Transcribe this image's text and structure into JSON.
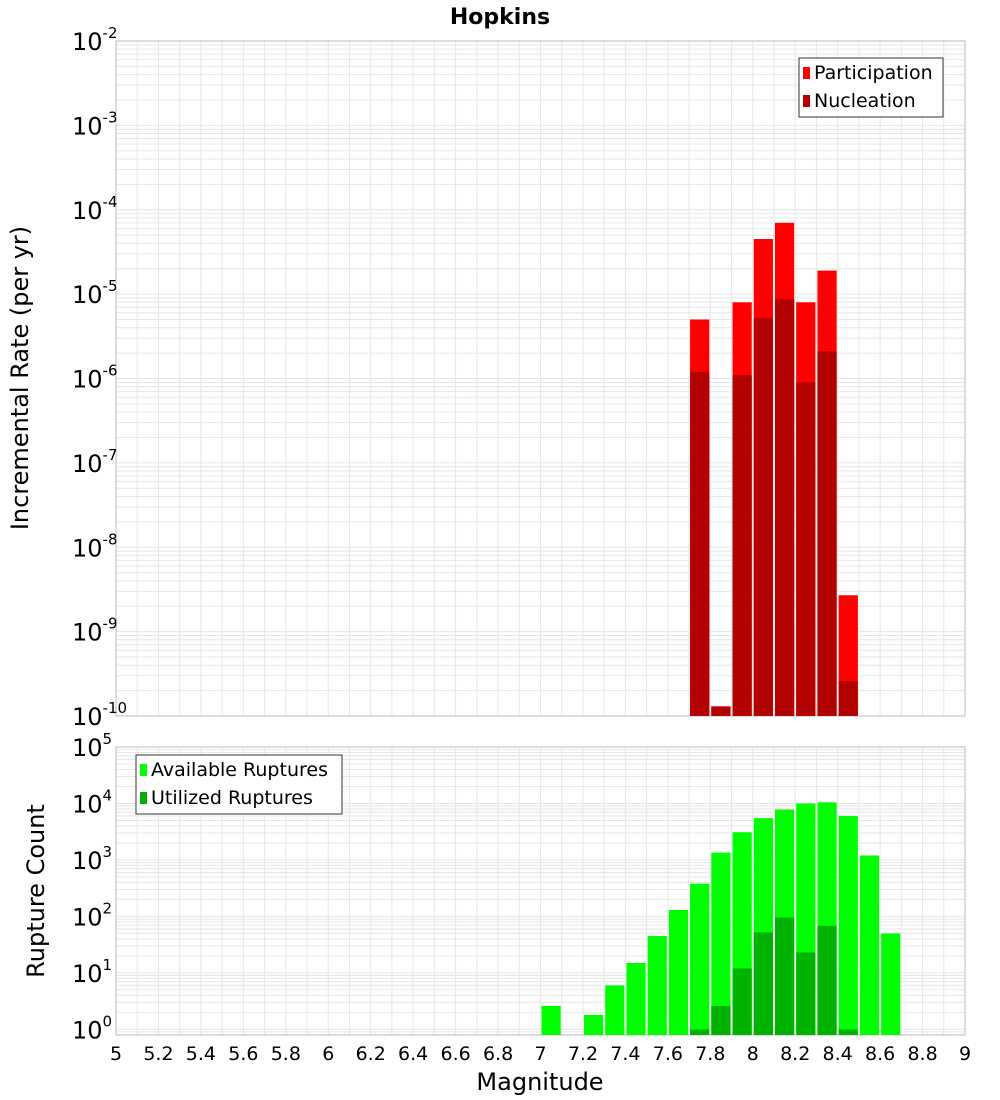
{
  "title": "Hopkins",
  "xlabel": "Magnitude",
  "xlim": [
    5,
    9
  ],
  "xticks": [
    "5",
    "5.2",
    "5.4",
    "5.6",
    "5.8",
    "6",
    "6.2",
    "6.4",
    "6.6",
    "6.8",
    "7",
    "7.2",
    "7.4",
    "7.6",
    "7.8",
    "8",
    "8.2",
    "8.4",
    "8.6",
    "8.8",
    "9"
  ],
  "colors": {
    "participation": "#ff0000",
    "nucleation": "#b30000",
    "available": "#00ff00",
    "utilized": "#00b300",
    "grid": "#e6e6e6",
    "frame": "#bbbbbb"
  },
  "chart_data": [
    {
      "type": "bar",
      "title": "Hopkins",
      "ylabel": "Incremental Rate (per yr)",
      "yscale": "log",
      "ylim_exp": [
        -10,
        -2
      ],
      "ytick_exps": [
        "-10",
        "-9",
        "-8",
        "-7",
        "-6",
        "-5",
        "-4",
        "-3",
        "-2"
      ],
      "legend": [
        "Participation",
        "Nucleation"
      ],
      "legend_position": "top-right",
      "x": [
        7.75,
        7.85,
        7.95,
        8.05,
        8.15,
        8.25,
        8.35,
        8.45
      ],
      "series": [
        {
          "name": "Participation",
          "values": [
            5e-06,
            1.3e-10,
            8e-06,
            4.5e-05,
            7e-05,
            8e-06,
            1.9e-05,
            2.7e-09
          ]
        },
        {
          "name": "Nucleation",
          "values": [
            1.2e-06,
            1.3e-10,
            1.1e-06,
            5.2e-06,
            8.7e-06,
            9e-07,
            2.1e-06,
            2.6e-10
          ]
        }
      ]
    },
    {
      "type": "bar",
      "ylabel": "Rupture Count",
      "yscale": "log",
      "ylim_exp": [
        -0.1,
        5
      ],
      "ytick_exps": [
        "0",
        "1",
        "2",
        "3",
        "4",
        "5"
      ],
      "legend": [
        "Available Ruptures",
        "Utilized Ruptures"
      ],
      "legend_position": "top-left",
      "x": [
        7.05,
        7.25,
        7.35,
        7.45,
        7.55,
        7.65,
        7.75,
        7.85,
        7.95,
        8.05,
        8.15,
        8.25,
        8.35,
        8.45,
        8.55,
        8.65
      ],
      "series": [
        {
          "name": "Available Ruptures",
          "values": [
            2.6,
            1.8,
            6,
            15,
            45,
            130,
            380,
            1350,
            3100,
            5500,
            7800,
            10000,
            10500,
            6000,
            1200,
            50
          ]
        },
        {
          "name": "Utilized Ruptures",
          "values": [
            0,
            0,
            0,
            0,
            0,
            0,
            1,
            2.6,
            12,
            52,
            95,
            23,
            68,
            1,
            0,
            0
          ]
        }
      ]
    }
  ]
}
